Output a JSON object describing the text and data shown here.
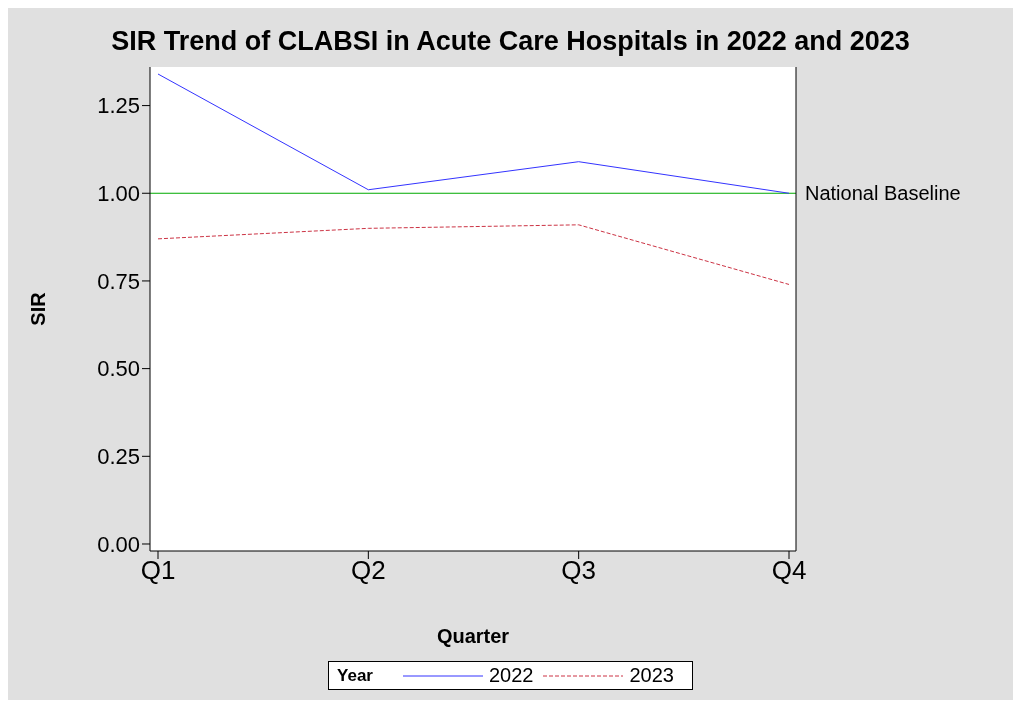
{
  "chart_data": {
    "type": "line",
    "title": "SIR Trend of CLABSI in Acute Care Hospitals in 2022 and 2023",
    "xlabel": "Quarter",
    "ylabel": "SIR",
    "legend_title": "Year",
    "categories": [
      "Q1",
      "Q2",
      "Q3",
      "Q4"
    ],
    "series": [
      {
        "name": "2022",
        "color": "#3333ff",
        "values": [
          1.34,
          1.01,
          1.09,
          1.0
        ],
        "line_style": "solid"
      },
      {
        "name": "2023",
        "color": "#cc3344",
        "values": [
          0.87,
          0.9,
          0.91,
          0.74
        ],
        "line_style": "dashed"
      }
    ],
    "ylim": [
      -0.02,
      1.36
    ],
    "yticks": [
      {
        "value": 0,
        "label": "0.00"
      },
      {
        "value": 0.25,
        "label": "0.25"
      },
      {
        "value": 0.5,
        "label": "0.50"
      },
      {
        "value": 0.75,
        "label": "0.75"
      },
      {
        "value": 1,
        "label": "1.00"
      },
      {
        "value": 1.25,
        "label": "1.25"
      }
    ],
    "ref_lines": [
      {
        "axis": "y",
        "value": 1,
        "label": "National Baseline",
        "color": "#00aa00"
      }
    ],
    "legend": "bottom",
    "grid": false,
    "marker": "none"
  }
}
